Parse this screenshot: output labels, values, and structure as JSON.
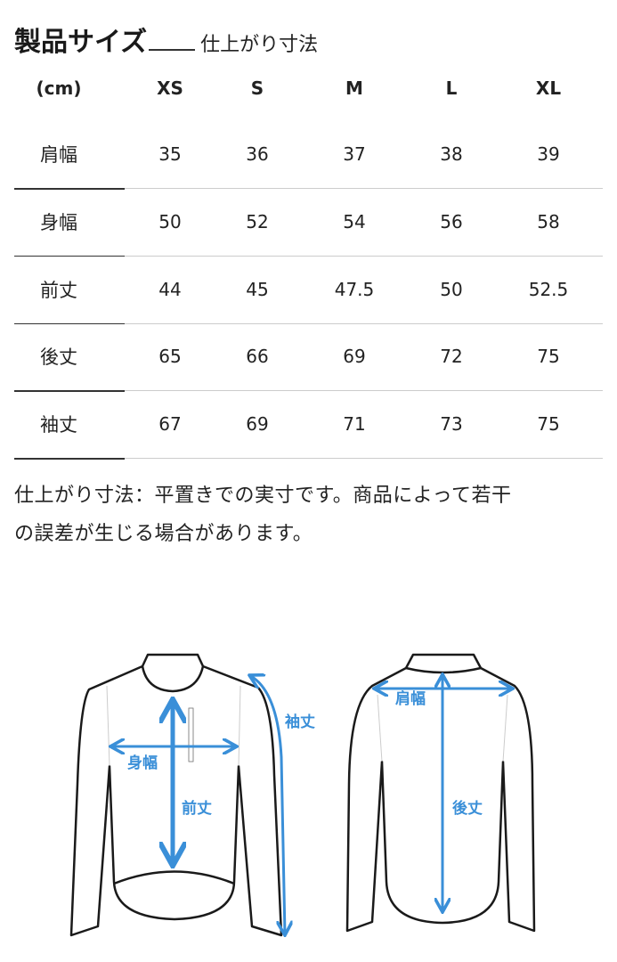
{
  "title": {
    "main": "製品サイズ",
    "sub": "仕上がり寸法"
  },
  "table": {
    "unit": "(cm)",
    "sizes": [
      "XS",
      "S",
      "M",
      "L",
      "XL"
    ],
    "rows": [
      {
        "label": "肩幅",
        "values": [
          "35",
          "36",
          "37",
          "38",
          "39"
        ]
      },
      {
        "label": "身幅",
        "values": [
          "50",
          "52",
          "54",
          "56",
          "58"
        ]
      },
      {
        "label": "前丈",
        "values": [
          "44",
          "45",
          "47.5",
          "50",
          "52.5"
        ]
      },
      {
        "label": "後丈",
        "values": [
          "65",
          "66",
          "69",
          "72",
          "75"
        ]
      },
      {
        "label": "袖丈",
        "values": [
          "67",
          "69",
          "71",
          "73",
          "75"
        ]
      }
    ]
  },
  "note": {
    "line1": "仕上がり寸法：平置きでの実寸です。商品によって若干",
    "line2": "の誤差が生じる場合があります。"
  },
  "diagram": {
    "front_labels": {
      "sleeve": "袖丈",
      "chest": "身幅",
      "front_length": "前丈"
    },
    "back_labels": {
      "shoulder": "肩幅",
      "back_length": "後丈"
    },
    "arrow_color": "#3a8fd8"
  }
}
